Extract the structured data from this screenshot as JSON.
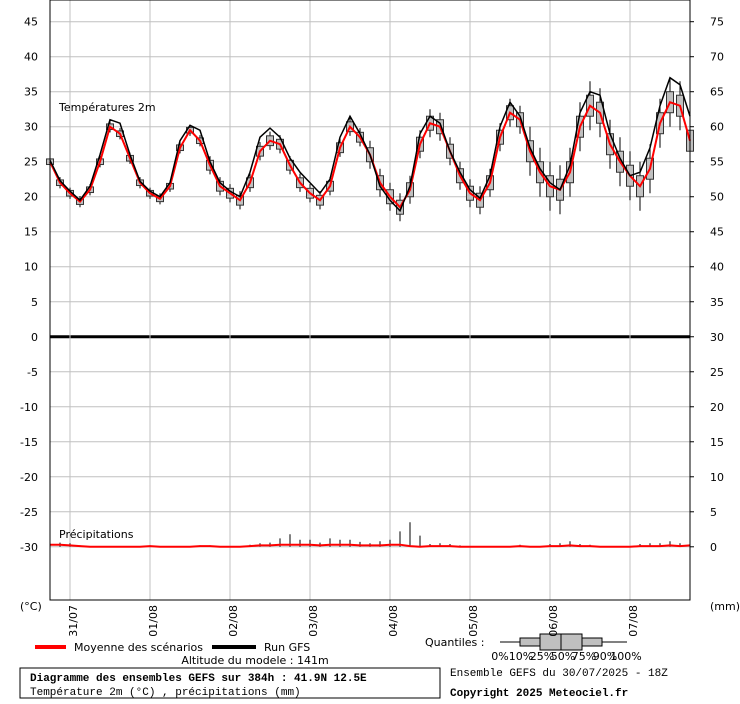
{
  "chart_data": {
    "type": "ensemble",
    "title": "Diagramme des ensembles GEFS sur 384h : 41.9N 12.5E",
    "subtitle": "Température 2m (°C) , précipitations (mm)",
    "run_info": "Ensemble GEFS du 30/07/2025 - 18Z",
    "copyright": "Copyright 2025 Meteociel.fr",
    "altitude": "Altitude du modele : 141m",
    "temperature_label": "Températures 2m",
    "precipitation_label": "Précipitations",
    "ylabel": "(°C)",
    "y2label": "(mm)",
    "quantiles_title": "Quantiles :",
    "quantile_labels": [
      "0%",
      "10%",
      "25%",
      "50%",
      "75%",
      "90%",
      "100%"
    ],
    "grid": true,
    "xlim": [
      0,
      192
    ],
    "xticks": [
      {
        "value": 6,
        "label": "31/07"
      },
      {
        "value": 30,
        "label": "01/08"
      },
      {
        "value": 54,
        "label": "02/08"
      },
      {
        "value": 78,
        "label": "03/08"
      },
      {
        "value": 102,
        "label": "04/08"
      },
      {
        "value": 126,
        "label": "05/08"
      },
      {
        "value": 150,
        "label": "06/08"
      },
      {
        "value": 174,
        "label": "07/08"
      }
    ],
    "ylim": [
      -37.6,
      48.1
    ],
    "yticks": [
      -30,
      -25,
      -20,
      -15,
      -10,
      -5,
      0,
      5,
      10,
      15,
      20,
      25,
      30,
      35,
      40,
      45
    ],
    "y2lim": [
      -7.6,
      78.1
    ],
    "y2ticks": [
      0,
      5,
      10,
      15,
      20,
      25,
      30,
      35,
      40,
      45,
      50,
      55,
      60,
      65,
      70,
      75
    ],
    "x": [
      0,
      3,
      6,
      9,
      12,
      15,
      18,
      21,
      24,
      27,
      30,
      33,
      36,
      39,
      42,
      45,
      48,
      51,
      54,
      57,
      60,
      63,
      66,
      69,
      72,
      75,
      78,
      81,
      84,
      87,
      90,
      93,
      96,
      99,
      102,
      105,
      108,
      111,
      114,
      117,
      120,
      123,
      126,
      129,
      132,
      135,
      138,
      141,
      144,
      147,
      150,
      153,
      156,
      159,
      162,
      165,
      168,
      171,
      174,
      177,
      180,
      183,
      186,
      189,
      192
    ],
    "series": [
      {
        "name": "Moyenne des scénarios",
        "color": "#ff0000",
        "values": [
          25,
          22,
          20.5,
          19.3,
          21,
          25,
          30,
          29,
          25.5,
          22,
          20.5,
          19.7,
          21.5,
          27,
          29.5,
          28,
          24.5,
          21.5,
          20.5,
          19.5,
          22,
          26.5,
          28,
          27.5,
          24.5,
          22,
          20.5,
          19.5,
          21.5,
          27,
          30,
          28.5,
          26,
          22,
          20,
          18.5,
          21,
          27.5,
          30.5,
          30,
          26.5,
          23,
          20.5,
          19.5,
          22,
          28.5,
          32,
          31,
          26.5,
          23.5,
          21.5,
          21,
          23.5,
          30,
          33,
          32,
          27.5,
          25,
          23,
          21.5,
          24,
          30.5,
          33.5,
          33,
          28
        ]
      },
      {
        "name": "Run GFS",
        "color": "#000000",
        "values": [
          25.2,
          22.3,
          20.8,
          19.5,
          21.5,
          26,
          31,
          30.5,
          26,
          22.2,
          20.8,
          20,
          22,
          28,
          30.2,
          29.5,
          25,
          22,
          20.8,
          20,
          23.5,
          28.5,
          29.8,
          28.5,
          25.5,
          23.5,
          22,
          20.5,
          22.5,
          28.5,
          31.5,
          29,
          26,
          21.5,
          19.5,
          18,
          21.5,
          29,
          31.5,
          30.5,
          26.5,
          23.5,
          21,
          19.8,
          23,
          30,
          33.5,
          31.5,
          27,
          24,
          22,
          21,
          24.5,
          32,
          35,
          34.5,
          29,
          25.5,
          23,
          23.5,
          27,
          33,
          37,
          36,
          31.5
        ]
      }
    ],
    "boxes": {
      "color": "#c0c0c0",
      "q1": [
        24.6,
        21.6,
        20.1,
        18.9,
        20.6,
        24.6,
        29.6,
        28.6,
        25.1,
        21.6,
        20.1,
        19.3,
        21.1,
        26.6,
        29.1,
        27.6,
        23.8,
        20.8,
        19.8,
        18.8,
        21.3,
        25.8,
        27.3,
        26.8,
        23.8,
        21.3,
        19.8,
        18.8,
        20.8,
        26.3,
        29.3,
        27.8,
        25,
        21,
        19,
        17.5,
        20,
        26.5,
        29.5,
        29,
        25.5,
        22,
        19.5,
        18.5,
        21,
        27.5,
        31,
        30,
        25,
        22,
        20,
        19.5,
        22,
        28.5,
        31.5,
        30.5,
        26,
        23.5,
        21.5,
        20,
        22.5,
        29,
        32,
        31.5,
        26.5
      ],
      "q3": [
        25.4,
        22.4,
        20.9,
        19.7,
        21.4,
        25.4,
        30.4,
        29.4,
        25.9,
        22.4,
        20.9,
        20.1,
        21.9,
        27.4,
        29.9,
        28.4,
        25.2,
        22.2,
        21.2,
        20.2,
        22.7,
        27.2,
        28.7,
        28.2,
        25.2,
        22.7,
        21.2,
        20.2,
        22.2,
        27.7,
        30.7,
        29.2,
        27,
        23,
        21,
        19.5,
        22,
        28.5,
        31.5,
        31,
        27.5,
        24,
        21.5,
        20.5,
        23,
        29.5,
        33,
        32,
        28,
        25,
        23,
        22.5,
        25,
        31.5,
        34.5,
        33.5,
        29,
        26.5,
        24.5,
        23,
        25.5,
        32,
        35,
        34.5,
        29.5
      ],
      "low": [
        24.2,
        21.2,
        19.7,
        18.5,
        20.2,
        24.2,
        29.2,
        28.2,
        24.7,
        21.2,
        19.7,
        18.9,
        20.7,
        26.2,
        28.7,
        27.2,
        23.2,
        20.2,
        19.2,
        18.2,
        20.7,
        25.2,
        26.7,
        26.2,
        23.2,
        20.7,
        19.2,
        18.2,
        20.2,
        25.7,
        28.7,
        27.2,
        24,
        20,
        18,
        16.5,
        19,
        25.5,
        28.5,
        28,
        24.5,
        21,
        18.5,
        17.5,
        20,
        26.5,
        30,
        29,
        23,
        20,
        18,
        17.5,
        20,
        26.5,
        29.5,
        28.5,
        24,
        21.5,
        19.5,
        18,
        20.5,
        27,
        30,
        29.5,
        24.5
      ],
      "high": [
        25.8,
        22.8,
        21.3,
        20.1,
        21.8,
        25.8,
        30.8,
        29.8,
        26.3,
        22.8,
        21.3,
        20.5,
        22.3,
        27.8,
        30.3,
        28.8,
        25.8,
        22.8,
        21.8,
        20.8,
        23.3,
        27.8,
        29.3,
        28.8,
        25.8,
        23.3,
        21.8,
        20.8,
        22.8,
        28.3,
        31.3,
        29.8,
        28,
        24,
        22,
        20.5,
        23,
        29.5,
        32.5,
        32,
        28.5,
        25,
        22.5,
        21.5,
        24,
        30.5,
        34,
        33,
        30,
        27,
        25,
        24.5,
        27,
        33.5,
        36.5,
        35.5,
        31,
        28.5,
        26.5,
        25,
        27.5,
        34,
        37,
        36.5,
        31.5
      ]
    },
    "precipitation": {
      "axis": "y2",
      "color": "#ff0000",
      "mean": [
        0.3,
        0.3,
        0.2,
        0.1,
        0,
        0,
        0,
        0,
        0,
        0,
        0.1,
        0,
        0,
        0,
        0,
        0.1,
        0.1,
        0,
        0,
        0,
        0.1,
        0.2,
        0.2,
        0.3,
        0.3,
        0.3,
        0.3,
        0.2,
        0.3,
        0.3,
        0.3,
        0.2,
        0.2,
        0.2,
        0.3,
        0.3,
        0.1,
        0,
        0.1,
        0.1,
        0.1,
        0,
        0,
        0,
        0,
        0,
        0,
        0.1,
        0,
        0,
        0.1,
        0.1,
        0.2,
        0.1,
        0.1,
        0,
        0,
        0,
        0,
        0.1,
        0.1,
        0.1,
        0.2,
        0.1,
        0.2
      ],
      "max": [
        0.6,
        0.6,
        0.5,
        0.2,
        0,
        0,
        0,
        0,
        0,
        0,
        0.2,
        0,
        0,
        0,
        0,
        0.2,
        0.2,
        0,
        0,
        0,
        0.3,
        0.5,
        0.6,
        1.2,
        1.8,
        1,
        1,
        0.6,
        1.2,
        1,
        1,
        0.7,
        0.5,
        0.8,
        1,
        2.2,
        3.5,
        1.6,
        0.4,
        0.5,
        0.4,
        0.2,
        0.1,
        0.1,
        0,
        0,
        0,
        0.3,
        0,
        0,
        0.4,
        0.5,
        0.8,
        0.4,
        0.3,
        0,
        0,
        0,
        0,
        0.4,
        0.5,
        0.5,
        0.8,
        0.5,
        2.3
      ]
    }
  }
}
